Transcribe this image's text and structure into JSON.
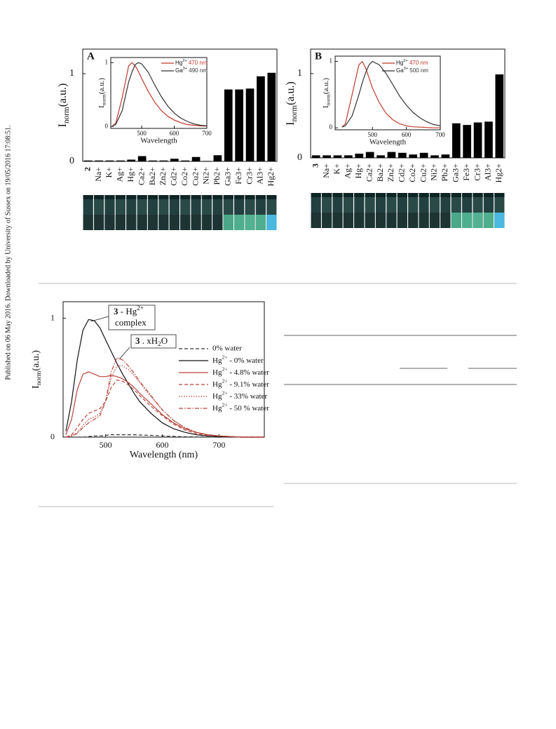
{
  "sidebar": "Published on 06 May 2016. Downloaded by University of Sussex on 19/05/2016 17:08:51.",
  "chart_data": [
    {
      "type": "bar",
      "label": "A",
      "ylabel": [
        "I",
        "norm",
        "(a.u.)"
      ],
      "categories": [
        "2",
        "Na+",
        "K+",
        "Ag+",
        "Hg+",
        "Ca2+",
        "Ba2+",
        "Zn2+",
        "Cd2+",
        "Co2+",
        "Cu2+",
        "Ni2+",
        "Pb2+",
        "Ga3+",
        "Fe3+",
        "Cr3+",
        "Al3+",
        "Hg2+"
      ],
      "values": [
        0.01,
        0.01,
        0.01,
        0.01,
        0.02,
        0.06,
        0.01,
        0.01,
        0.03,
        0.01,
        0.05,
        0.005,
        0.07,
        0.82,
        0.82,
        0.83,
        0.97,
        1.01
      ],
      "color": "#000000",
      "ylim": [
        0,
        1.28
      ],
      "yticks": [
        0,
        1
      ]
    },
    {
      "type": "line",
      "xlabel": "Wavelength",
      "ylabel": [
        "I",
        "norm",
        "(a.u.)"
      ],
      "x": [
        410,
        420,
        440,
        460,
        470,
        480,
        490,
        500,
        520,
        540,
        560,
        580,
        600,
        620,
        640,
        660,
        680,
        700
      ],
      "series": [
        {
          "name": [
            "Hg",
            "2+",
            " 470 nm"
          ],
          "color": "#c0392b",
          "style": "solid",
          "values": [
            0.01,
            0.05,
            0.45,
            0.95,
            1,
            0.95,
            0.86,
            0.75,
            0.55,
            0.38,
            0.25,
            0.16,
            0.1,
            0.06,
            0.03,
            0.02,
            0.01,
            0.005
          ]
        },
        {
          "name": [
            "Ga",
            "3+",
            " 490 nm"
          ],
          "color": "#333333",
          "style": "solid",
          "values": [
            0.01,
            0.03,
            0.25,
            0.7,
            0.85,
            0.97,
            1,
            0.98,
            0.85,
            0.65,
            0.47,
            0.32,
            0.21,
            0.13,
            0.08,
            0.04,
            0.02,
            0.01
          ]
        }
      ],
      "xlim": [
        405,
        700
      ],
      "xticks": [
        500,
        600,
        700
      ],
      "ylim": [
        -0.03,
        1.08
      ],
      "yticks": [
        0,
        1
      ]
    },
    {
      "type": "bar",
      "label": "B",
      "ylabel": [
        "I",
        "norm",
        "(a.u.)"
      ],
      "categories": [
        "3",
        "Na+",
        "K+",
        "Ag+",
        "Hg+",
        "Ca2+",
        "Ba2+",
        "Zn2+",
        "Cd2+",
        "Co2+",
        "Cu2+",
        "Ni2+",
        "Pb2+",
        "Ga3+",
        "Fe3+",
        "Cr3+",
        "Al3+",
        "Hg2+"
      ],
      "values": [
        0.03,
        0.03,
        0.03,
        0.03,
        0.05,
        0.07,
        0.03,
        0.07,
        0.06,
        0.04,
        0.06,
        0.03,
        0.04,
        0.41,
        0.39,
        0.42,
        0.43,
        0.99
      ],
      "color": "#000000",
      "ylim": [
        0,
        1.29
      ],
      "yticks": [
        0,
        1
      ]
    },
    {
      "type": "line",
      "xlabel": "Wavelength",
      "ylabel": [
        "I",
        "norm",
        "(a.u.)"
      ],
      "x": [
        410,
        420,
        440,
        460,
        470,
        480,
        490,
        500,
        520,
        540,
        560,
        580,
        600,
        620,
        640,
        660,
        680,
        700
      ],
      "series": [
        {
          "name": [
            "Hg",
            "2+",
            " 470 nm"
          ],
          "color": "#c0392b",
          "style": "solid",
          "values": [
            0.01,
            0.06,
            0.5,
            0.95,
            1,
            0.9,
            0.75,
            0.6,
            0.38,
            0.22,
            0.12,
            0.06,
            0.03,
            0.015,
            0.01,
            0.005,
            0,
            0
          ]
        },
        {
          "name": [
            "Ga",
            "3+",
            " 500 nm"
          ],
          "color": "#333333",
          "style": "solid",
          "values": [
            0.01,
            0.03,
            0.18,
            0.5,
            0.68,
            0.83,
            0.95,
            1,
            0.95,
            0.82,
            0.65,
            0.48,
            0.34,
            0.23,
            0.15,
            0.09,
            0.05,
            0.03
          ]
        }
      ],
      "xlim": [
        390,
        700
      ],
      "xticks": [
        500,
        600,
        700
      ],
      "ylim": [
        -0.03,
        1.08
      ],
      "yticks": [
        0,
        1
      ]
    },
    {
      "type": "line",
      "xlabel": "Wavelength (nm)",
      "ylabel": [
        "I",
        "norm",
        "(a.u.)"
      ],
      "annotations": [
        [
          [
            "3",
            " - Hg",
            "2+"
          ],
          [
            "complex"
          ]
        ],
        [
          [
            "3",
            " . xH",
            "2",
            "O"
          ]
        ]
      ],
      "x": [
        430,
        440,
        450,
        460,
        470,
        480,
        490,
        500,
        510,
        520,
        530,
        540,
        550,
        560,
        580,
        600,
        620,
        640,
        660,
        680,
        700,
        740,
        780
      ],
      "series": [
        {
          "name": "0% water",
          "color": "#333333",
          "style": "dashed",
          "values": [
            0,
            0,
            0,
            0,
            0.005,
            0.01,
            0.01,
            0.015,
            0.02,
            0.02,
            0.02,
            0.02,
            0.02,
            0.018,
            0.015,
            0.01,
            0.006,
            0.003,
            0.002,
            0.001,
            0,
            0,
            0
          ]
        },
        {
          "name": [
            "Hg",
            "2+",
            " - 0% water"
          ],
          "color": "#111111",
          "style": "solid",
          "values": [
            0.05,
            0.3,
            0.65,
            0.9,
            0.99,
            0.98,
            0.92,
            0.82,
            0.72,
            0.62,
            0.53,
            0.45,
            0.37,
            0.3,
            0.2,
            0.12,
            0.07,
            0.04,
            0.02,
            0.01,
            0.005,
            0,
            0
          ]
        },
        {
          "name": [
            "Hg",
            "2+",
            " - 4.8% water"
          ],
          "color": "#b8443a",
          "style": "solid",
          "values": [
            0.02,
            0.15,
            0.4,
            0.53,
            0.55,
            0.53,
            0.51,
            0.51,
            0.52,
            0.51,
            0.49,
            0.46,
            0.42,
            0.37,
            0.28,
            0.19,
            0.12,
            0.07,
            0.04,
            0.02,
            0.01,
            0,
            0
          ]
        },
        {
          "name": [
            "Hg",
            "2+",
            " - 9.1% water"
          ],
          "color": "#b8443a",
          "style": "dashed",
          "values": [
            0,
            0.02,
            0.08,
            0.15,
            0.2,
            0.22,
            0.24,
            0.3,
            0.42,
            0.48,
            0.47,
            0.44,
            0.4,
            0.35,
            0.26,
            0.18,
            0.11,
            0.06,
            0.03,
            0.015,
            0.01,
            0,
            0
          ]
        },
        {
          "name": [
            "Hg",
            "2+",
            " - 33% water"
          ],
          "color": "#b8443a",
          "style": "dotted",
          "values": [
            0,
            0.01,
            0.04,
            0.1,
            0.15,
            0.17,
            0.2,
            0.3,
            0.5,
            0.6,
            0.6,
            0.57,
            0.52,
            0.46,
            0.34,
            0.23,
            0.14,
            0.08,
            0.04,
            0.02,
            0.01,
            0,
            0
          ]
        },
        {
          "name": [
            "Hg",
            "2+",
            " - 50 % water"
          ],
          "color": "#b8443a",
          "style": "dashdot",
          "values": [
            0,
            0.01,
            0.03,
            0.08,
            0.12,
            0.15,
            0.18,
            0.3,
            0.55,
            0.67,
            0.65,
            0.6,
            0.54,
            0.47,
            0.35,
            0.23,
            0.14,
            0.08,
            0.04,
            0.02,
            0.01,
            0,
            0
          ]
        }
      ],
      "xlim": [
        425,
        780
      ],
      "xticks": [
        500,
        600,
        700
      ],
      "ylim": [
        0,
        1.14
      ],
      "yticks": [
        0,
        1
      ]
    }
  ]
}
